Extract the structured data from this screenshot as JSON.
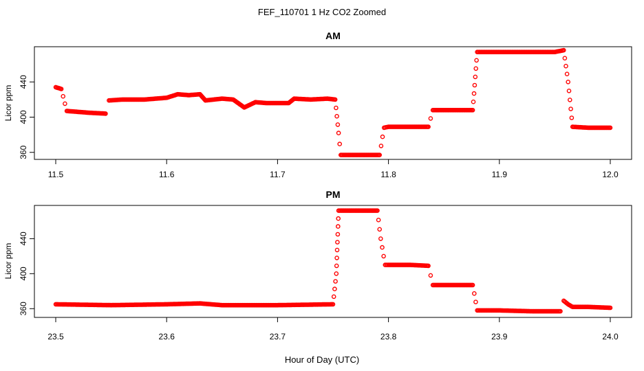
{
  "figure": {
    "title": "FEF_110701  1 Hz CO2 Zoomed",
    "xlabel": "Hour of Day (UTC)",
    "series_color": "#ff0000"
  },
  "chart_data": [
    {
      "type": "scatter",
      "title": "AM",
      "ylabel": "Licor ppm",
      "xlim": [
        11.5,
        12.0
      ],
      "ylim": [
        352,
        480
      ],
      "xticks": [
        "11.5",
        "11.6",
        "11.7",
        "11.8",
        "11.9",
        "12.0"
      ],
      "yticks": [
        "360",
        "400",
        "440"
      ],
      "x": [
        11.5,
        11.505,
        11.51,
        11.53,
        11.545,
        11.548,
        11.56,
        11.58,
        11.6,
        11.61,
        11.62,
        11.63,
        11.635,
        11.65,
        11.66,
        11.67,
        11.68,
        11.69,
        11.7,
        11.71,
        11.715,
        11.73,
        11.745,
        11.752,
        11.755,
        11.757,
        11.78,
        11.792,
        11.796,
        11.8,
        11.82,
        11.836,
        11.84,
        11.86,
        11.876,
        11.88,
        11.9,
        11.93,
        11.95,
        11.958,
        11.962,
        11.966,
        11.98,
        12.0
      ],
      "y": [
        434,
        432,
        407,
        405,
        404,
        419,
        420,
        420,
        422,
        426,
        425,
        426,
        419,
        421,
        420,
        411,
        417,
        416,
        416,
        416,
        421,
        420,
        421,
        420,
        382,
        357,
        357,
        357,
        388,
        389,
        389,
        389,
        408,
        408,
        408,
        474,
        474,
        474,
        474,
        476,
        440,
        389,
        388,
        388
      ]
    },
    {
      "type": "scatter",
      "title": "PM",
      "ylabel": "Licor ppm",
      "xlim": [
        23.5,
        24.0
      ],
      "ylim": [
        350,
        478
      ],
      "xticks": [
        "23.5",
        "23.6",
        "23.7",
        "23.8",
        "23.9",
        "24.0"
      ],
      "yticks": [
        "360",
        "400",
        "440"
      ],
      "x": [
        23.5,
        23.55,
        23.6,
        23.63,
        23.65,
        23.7,
        23.75,
        23.753,
        23.755,
        23.757,
        23.77,
        23.79,
        23.793,
        23.797,
        23.8,
        23.82,
        23.836,
        23.84,
        23.86,
        23.876,
        23.88,
        23.9,
        23.93,
        23.955,
        23.958,
        23.962,
        23.966,
        23.98,
        24.0
      ],
      "y": [
        365,
        364,
        365,
        366,
        364,
        364,
        365,
        400,
        472,
        472,
        472,
        472,
        440,
        410,
        410,
        410,
        409,
        387,
        387,
        387,
        358,
        358,
        357,
        357,
        369,
        365,
        362,
        362,
        361
      ]
    }
  ]
}
